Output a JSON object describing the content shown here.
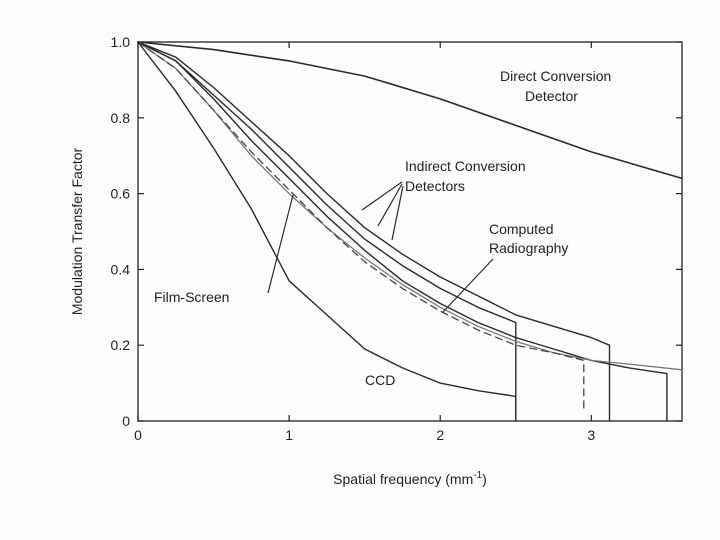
{
  "chart_data": {
    "type": "line",
    "title": "",
    "xlabel": "Spatial frequency (mm",
    "xlabel_sup": "-1",
    "xlabel_end": ")",
    "ylabel": "Modulation Transfer Factor",
    "xlim": [
      0,
      3.6
    ],
    "ylim": [
      0,
      1.0
    ],
    "xticks": [
      0,
      1,
      2,
      3
    ],
    "yticks": [
      0,
      0.2,
      0.4,
      0.6,
      0.8,
      1.0
    ],
    "xtick_labels": [
      "0",
      "1",
      "2",
      "3"
    ],
    "ytick_labels": [
      "0",
      "0.2",
      "0.4",
      "0.6",
      "0.8",
      "1.0"
    ],
    "grid": false,
    "annotations": {
      "direct_line1": "Direct Conversion",
      "direct_line2": "Detector",
      "indirect_line1": "Indirect Conversion",
      "indirect_line2": "Detectors",
      "computed_line1": "Computed",
      "computed_line2": "Radiography",
      "film": "Film-Screen",
      "ccd": "CCD"
    },
    "series": [
      {
        "key": "direct",
        "color": "#2a2a2a",
        "dash": "",
        "width": 1.6,
        "x": [
          0,
          0.5,
          1.0,
          1.5,
          2.0,
          2.5,
          3.0,
          3.6
        ],
        "y": [
          1.0,
          0.98,
          0.95,
          0.91,
          0.85,
          0.78,
          0.71,
          0.64
        ]
      },
      {
        "key": "indirect-a",
        "color": "#2a2a2a",
        "dash": "",
        "width": 1.4,
        "x": [
          0,
          0.25,
          0.5,
          0.75,
          1.0,
          1.25,
          1.5,
          1.75,
          2.0,
          2.25,
          2.5,
          2.75,
          3.0,
          3.12,
          3.12
        ],
        "y": [
          1.0,
          0.96,
          0.88,
          0.79,
          0.7,
          0.6,
          0.51,
          0.44,
          0.38,
          0.33,
          0.28,
          0.25,
          0.22,
          0.2,
          0
        ]
      },
      {
        "key": "indirect-b",
        "color": "#2a2a2a",
        "dash": "",
        "width": 1.4,
        "x": [
          0,
          0.25,
          0.5,
          0.75,
          1.0,
          1.25,
          1.5,
          1.75,
          2.0,
          2.25,
          2.5,
          2.5
        ],
        "y": [
          1.0,
          0.95,
          0.86,
          0.77,
          0.67,
          0.57,
          0.48,
          0.41,
          0.35,
          0.3,
          0.26,
          0
        ]
      },
      {
        "key": "indirect-c",
        "color": "#2a2a2a",
        "dash": "",
        "width": 1.4,
        "x": [
          0,
          0.25,
          0.5,
          0.75,
          1.0,
          1.25,
          1.5,
          1.75,
          2.0,
          2.25,
          2.5,
          2.75,
          3.0,
          3.25,
          3.5,
          3.5
        ],
        "y": [
          1.0,
          0.95,
          0.85,
          0.74,
          0.64,
          0.54,
          0.45,
          0.37,
          0.31,
          0.26,
          0.22,
          0.19,
          0.16,
          0.14,
          0.125,
          0
        ]
      },
      {
        "key": "computed-radiography",
        "color": "#777777",
        "dash": "",
        "width": 1.3,
        "x": [
          0,
          0.25,
          0.5,
          0.75,
          1.0,
          1.25,
          1.5,
          1.75,
          2.0,
          2.25,
          2.5,
          2.75,
          3.0,
          3.25,
          3.6
        ],
        "y": [
          1.0,
          0.93,
          0.82,
          0.7,
          0.6,
          0.51,
          0.43,
          0.36,
          0.3,
          0.25,
          0.21,
          0.18,
          0.16,
          0.15,
          0.135
        ]
      },
      {
        "key": "film-screen",
        "color": "#444444",
        "dash": "7,5",
        "width": 1.3,
        "x": [
          0,
          0.25,
          0.5,
          0.75,
          1.0,
          1.25,
          1.5,
          1.75,
          2.0,
          2.25,
          2.5,
          2.75,
          2.95,
          2.95
        ],
        "y": [
          1.0,
          0.93,
          0.82,
          0.71,
          0.61,
          0.51,
          0.42,
          0.35,
          0.29,
          0.24,
          0.2,
          0.18,
          0.16,
          0.03
        ]
      },
      {
        "key": "ccd",
        "color": "#2a2a2a",
        "dash": "",
        "width": 1.4,
        "x": [
          0,
          0.25,
          0.5,
          0.75,
          1.0,
          1.25,
          1.5,
          1.75,
          2.0,
          2.25,
          2.5,
          2.5
        ],
        "y": [
          1.0,
          0.87,
          0.72,
          0.56,
          0.37,
          0.28,
          0.19,
          0.14,
          0.1,
          0.08,
          0.065,
          0
        ]
      }
    ]
  }
}
